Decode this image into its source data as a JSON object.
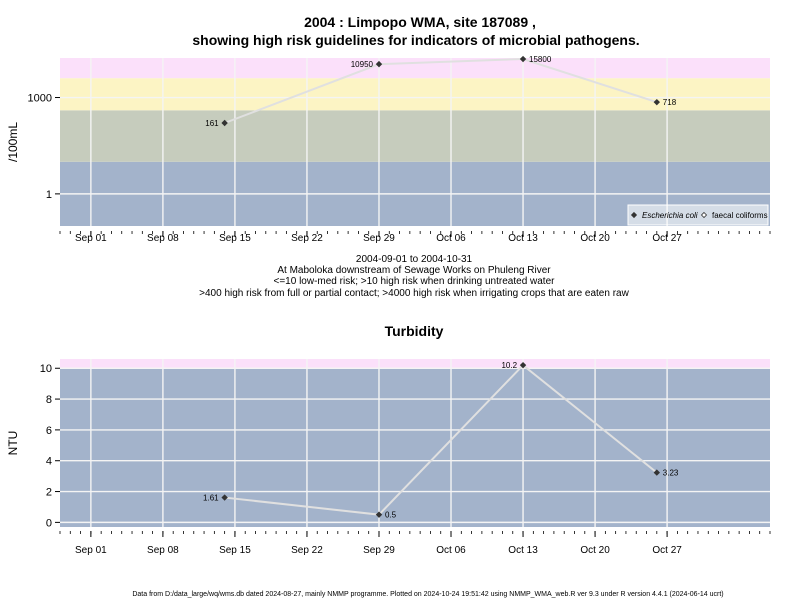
{
  "title": {
    "line1": "2004 : Limpopo WMA, site 187089 ,",
    "line2": "showing high risk guidelines for indicators of microbial pathogens."
  },
  "captions": {
    "date_range": "2004-09-01 to 2004-10-31",
    "location": "At Maboloka downstream of Sewage Works on Phuleng River",
    "guideline1": "<=10 low-med risk; >10 high risk when drinking untreated water",
    "guideline2": ">400 high risk from full or partial contact; >4000 high risk when irrigating crops that are eaten raw"
  },
  "footer": "Data from D:/data_large/wq/wms.db dated 2024-08-27, mainly NMMP programme. Plotted on 2024-10-24 19:51:42 using NMMP_WMA_web.R ver 9.3 under R version 4.4.1 (2024-06-14 ucrt)",
  "colors": {
    "band_blue": "#a3b3cb",
    "band_grey": "#c6ccbd",
    "band_yellow": "#fcf4c4",
    "band_pink": "#fbe0fa",
    "grid": "#f4f4f4",
    "line": "#e0e0e0",
    "marker": "#333333"
  },
  "chart_data": [
    {
      "type": "line",
      "title": "",
      "xlabel": "",
      "ylabel": "/100mL",
      "yscale": "log",
      "x_ticks": [
        "Sep 01",
        "Sep 08",
        "Sep 15",
        "Sep 22",
        "Sep 29",
        "Oct 06",
        "Oct 13",
        "Oct 20",
        "Oct 27"
      ],
      "x_tick_dates": [
        "2004-09-01",
        "2004-09-08",
        "2004-09-15",
        "2004-09-22",
        "2004-09-29",
        "2004-10-06",
        "2004-10-13",
        "2004-10-20",
        "2004-10-27"
      ],
      "xlim": [
        "2004-08-29",
        "2004-11-06"
      ],
      "y_ticks": [
        1,
        1000
      ],
      "y_tick_labels": [
        "1",
        "1000"
      ],
      "ylim": [
        0.1,
        17000
      ],
      "risk_bands": [
        {
          "from": 0.1,
          "to": 10,
          "color": "band_blue"
        },
        {
          "from": 10,
          "to": 400,
          "color": "band_grey"
        },
        {
          "from": 400,
          "to": 4000,
          "color": "band_yellow"
        },
        {
          "from": 4000,
          "to": 17000,
          "color": "band_pink"
        }
      ],
      "series": [
        {
          "name": "Escherichia coli",
          "x": [
            "2004-09-14",
            "2004-09-29",
            "2004-10-13",
            "2004-10-26"
          ],
          "y": [
            161,
            10950,
            15800,
            718
          ],
          "labels": [
            "161",
            "10950",
            "15800",
            "718"
          ],
          "label_side": [
            "left",
            "left",
            "right",
            "right"
          ]
        }
      ],
      "legend": {
        "position": "bottom-right",
        "entries": [
          {
            "label": "Escherichia coli",
            "marker": "filled-diamond",
            "italic": true
          },
          {
            "label": "faecal coliforms",
            "marker": "open-diamond",
            "italic": false
          }
        ]
      },
      "grid": true
    },
    {
      "type": "line",
      "title": "Turbidity",
      "xlabel": "",
      "ylabel": "NTU",
      "yscale": "linear",
      "x_ticks": [
        "Sep 01",
        "Sep 08",
        "Sep 15",
        "Sep 22",
        "Sep 29",
        "Oct 06",
        "Oct 13",
        "Oct 20",
        "Oct 27"
      ],
      "x_tick_dates": [
        "2004-09-01",
        "2004-09-08",
        "2004-09-15",
        "2004-09-22",
        "2004-09-29",
        "2004-10-06",
        "2004-10-13",
        "2004-10-20",
        "2004-10-27"
      ],
      "xlim": [
        "2004-08-29",
        "2004-11-06"
      ],
      "y_ticks": [
        0,
        2,
        4,
        6,
        8,
        10
      ],
      "y_tick_labels": [
        "0",
        "2",
        "4",
        "6",
        "8",
        "10"
      ],
      "ylim": [
        -0.3,
        10.6
      ],
      "risk_bands": [
        {
          "from": -0.3,
          "to": 10,
          "color": "band_blue"
        },
        {
          "from": 10,
          "to": 10.6,
          "color": "band_pink"
        }
      ],
      "series": [
        {
          "name": "",
          "x": [
            "2004-09-14",
            "2004-09-29",
            "2004-10-13",
            "2004-10-26"
          ],
          "y": [
            1.61,
            0.5,
            10.2,
            3.23
          ],
          "labels": [
            "1.61",
            "0.5",
            "10.2",
            "3.23"
          ],
          "label_side": [
            "left",
            "right",
            "left",
            "right"
          ]
        }
      ],
      "grid": true
    }
  ]
}
